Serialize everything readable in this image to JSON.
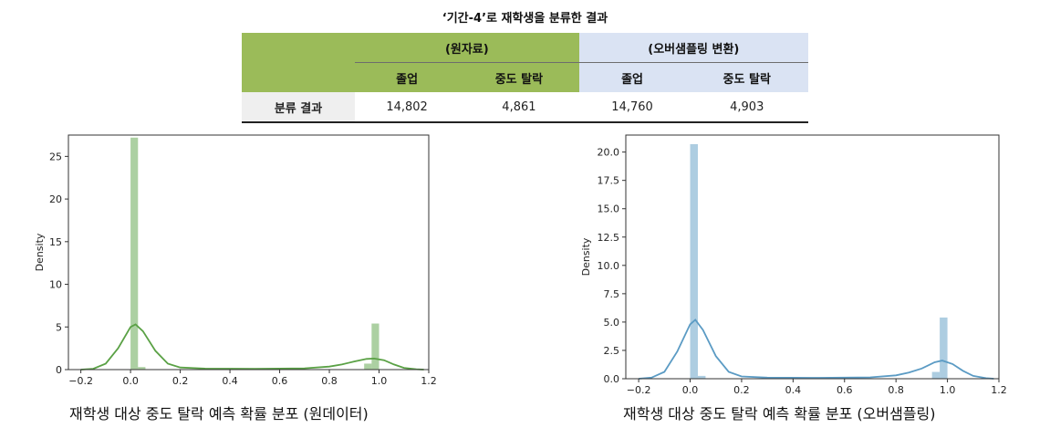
{
  "table": {
    "title": "‘기간-4’로 재학생을 분류한 결과",
    "group_raw": "(원자료)",
    "group_over": "(오버샘플링 변환)",
    "cols": [
      "졸업",
      "중도 탈락",
      "졸업",
      "중도 탈락"
    ],
    "row_label": "분류 결과",
    "values": [
      "14,802",
      "4,861",
      "14,760",
      "4,903"
    ],
    "colors": {
      "green": "#9bbb59",
      "blue": "#dae3f3"
    }
  },
  "chart_data": [
    {
      "type": "histogram+kde",
      "caption": "재학생 대상 중도 탈락 예측 확률 분포 (원데이터)",
      "ylabel": "Density",
      "color": "#5aa145",
      "xlim": [
        -0.25,
        1.2
      ],
      "ylim": [
        0,
        27.5
      ],
      "xticks": [
        -0.2,
        0.0,
        0.2,
        0.4,
        0.6,
        0.8,
        1.0,
        1.2
      ],
      "xtick_labels": [
        "−0.2",
        "0.0",
        "0.2",
        "0.4",
        "0.6",
        "0.8",
        "1.0",
        "1.2"
      ],
      "yticks": [
        0,
        5,
        10,
        15,
        20,
        25
      ],
      "ytick_labels": [
        "0",
        "5",
        "10",
        "15",
        "20",
        "25"
      ],
      "bars": [
        {
          "x0": 0.0,
          "x1": 0.03,
          "h": 27.2
        },
        {
          "x0": 0.03,
          "x1": 0.06,
          "h": 0.3
        },
        {
          "x0": 0.94,
          "x1": 0.97,
          "h": 0.7
        },
        {
          "x0": 0.97,
          "x1": 1.0,
          "h": 5.4
        }
      ],
      "kde": [
        [
          -0.2,
          0.0
        ],
        [
          -0.15,
          0.1
        ],
        [
          -0.1,
          0.7
        ],
        [
          -0.05,
          2.5
        ],
        [
          0.0,
          5.0
        ],
        [
          0.02,
          5.3
        ],
        [
          0.05,
          4.5
        ],
        [
          0.1,
          2.2
        ],
        [
          0.15,
          0.7
        ],
        [
          0.2,
          0.25
        ],
        [
          0.3,
          0.12
        ],
        [
          0.5,
          0.1
        ],
        [
          0.7,
          0.15
        ],
        [
          0.8,
          0.35
        ],
        [
          0.85,
          0.6
        ],
        [
          0.9,
          0.95
        ],
        [
          0.95,
          1.25
        ],
        [
          0.98,
          1.3
        ],
        [
          1.02,
          1.1
        ],
        [
          1.06,
          0.6
        ],
        [
          1.1,
          0.2
        ],
        [
          1.15,
          0.04
        ],
        [
          1.18,
          0.0
        ]
      ]
    },
    {
      "type": "histogram+kde",
      "caption": "재학생 대상 중도 탈락 예측 확률 분포 (오버샘플링)",
      "ylabel": "Density",
      "color": "#5b9bc4",
      "xlim": [
        -0.25,
        1.2
      ],
      "ylim": [
        0,
        21.5
      ],
      "xticks": [
        -0.2,
        0.0,
        0.2,
        0.4,
        0.6,
        0.8,
        1.0,
        1.2
      ],
      "xtick_labels": [
        "−0.2",
        "0.0",
        "0.2",
        "0.4",
        "0.6",
        "0.8",
        "1.0",
        "1.2"
      ],
      "yticks": [
        0,
        2.5,
        5,
        7.5,
        10,
        12.5,
        15,
        17.5,
        20
      ],
      "ytick_labels": [
        "0.0",
        "2.5",
        "5.0",
        "7.5",
        "10.0",
        "12.5",
        "15.0",
        "17.5",
        "20.0"
      ],
      "bars": [
        {
          "x0": 0.0,
          "x1": 0.03,
          "h": 20.7
        },
        {
          "x0": 0.03,
          "x1": 0.06,
          "h": 0.25
        },
        {
          "x0": 0.94,
          "x1": 0.97,
          "h": 0.6
        },
        {
          "x0": 0.97,
          "x1": 1.0,
          "h": 5.4
        }
      ],
      "kde": [
        [
          -0.2,
          0.0
        ],
        [
          -0.15,
          0.1
        ],
        [
          -0.1,
          0.6
        ],
        [
          -0.05,
          2.4
        ],
        [
          0.0,
          4.8
        ],
        [
          0.02,
          5.2
        ],
        [
          0.05,
          4.3
        ],
        [
          0.1,
          2.0
        ],
        [
          0.15,
          0.6
        ],
        [
          0.2,
          0.2
        ],
        [
          0.3,
          0.1
        ],
        [
          0.5,
          0.08
        ],
        [
          0.7,
          0.12
        ],
        [
          0.8,
          0.3
        ],
        [
          0.85,
          0.55
        ],
        [
          0.9,
          0.9
        ],
        [
          0.95,
          1.45
        ],
        [
          0.98,
          1.6
        ],
        [
          1.02,
          1.3
        ],
        [
          1.06,
          0.7
        ],
        [
          1.1,
          0.25
        ],
        [
          1.15,
          0.05
        ],
        [
          1.18,
          0.0
        ]
      ]
    }
  ]
}
